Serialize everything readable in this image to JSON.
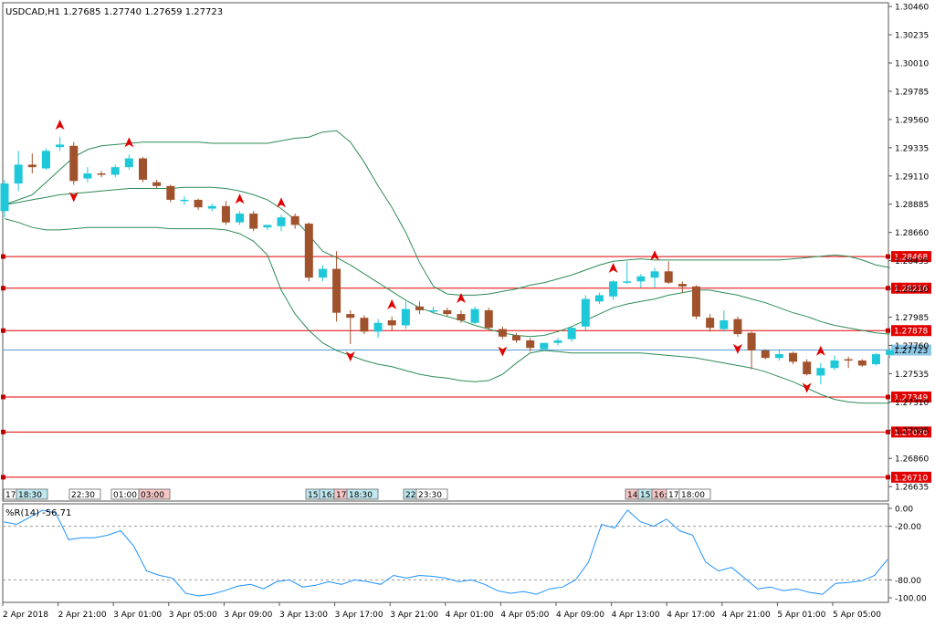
{
  "chart_data": [
    {
      "type": "candlestick",
      "title": "USDCAD,H1  1.27685 1.27740 1.27659 1.27723",
      "symbol": "USDCAD",
      "timeframe": "H1",
      "ohlc_header": {
        "open": 1.27685,
        "high": 1.2774,
        "low": 1.27659,
        "close": 1.27723
      },
      "y_ticks": [
        "1.30460",
        "1.30235",
        "1.30010",
        "1.29785",
        "1.29560",
        "1.29335",
        "1.29110",
        "1.28885",
        "1.28660",
        "1.28435",
        "1.28210",
        "1.27985",
        "1.27760",
        "1.27535",
        "1.27310",
        "1.27085",
        "1.26860",
        "1.26635"
      ],
      "ylim": [
        1.2652,
        1.3049
      ],
      "current_price": "1.27723",
      "horizontal_levels": [
        {
          "label": "1.28468",
          "value": 1.28468
        },
        {
          "label": "1.28216",
          "value": 1.28216
        },
        {
          "label": "1.27878",
          "value": 1.27878
        },
        {
          "label": "1.27349",
          "value": 1.27349
        },
        {
          "label": "1.27070",
          "value": 1.2707
        },
        {
          "label": "1.26710",
          "value": 1.2671
        }
      ],
      "session_labels": [
        {
          "text": "17:",
          "style": "plain"
        },
        {
          "text": "18:30",
          "style": "cyan"
        },
        {
          "text": "22:30",
          "style": "plain"
        },
        {
          "text": "01:00",
          "style": "plain"
        },
        {
          "text": "03:00",
          "style": "pink"
        },
        {
          "text": "15:",
          "style": "cyan"
        },
        {
          "text": "16:",
          "style": "cyan"
        },
        {
          "text": "17:",
          "style": "pink"
        },
        {
          "text": "18:30",
          "style": "cyan"
        },
        {
          "text": "22:",
          "style": "cyan"
        },
        {
          "text": "23:30",
          "style": "plain"
        },
        {
          "text": "14:",
          "style": "pink"
        },
        {
          "text": "15:",
          "style": "cyan"
        },
        {
          "text": "16:",
          "style": "pink"
        },
        {
          "text": "17:",
          "style": "plain"
        },
        {
          "text": "18:00",
          "style": "plain"
        }
      ],
      "candles": [
        {
          "o": 1.2883,
          "h": 1.2908,
          "l": 1.2878,
          "c": 1.2905
        },
        {
          "o": 1.2905,
          "h": 1.2931,
          "l": 1.2899,
          "c": 1.292
        },
        {
          "o": 1.292,
          "h": 1.2929,
          "l": 1.2913,
          "c": 1.2918
        },
        {
          "o": 1.2917,
          "h": 1.2933,
          "l": 1.2916,
          "c": 1.2931
        },
        {
          "o": 1.2934,
          "h": 1.2942,
          "l": 1.2931,
          "c": 1.2936
        },
        {
          "o": 1.2935,
          "h": 1.2938,
          "l": 1.2904,
          "c": 1.2907
        },
        {
          "o": 1.2909,
          "h": 1.2918,
          "l": 1.2906,
          "c": 1.2913
        },
        {
          "o": 1.2913,
          "h": 1.2915,
          "l": 1.291,
          "c": 1.2912
        },
        {
          "o": 1.2912,
          "h": 1.292,
          "l": 1.291,
          "c": 1.2918
        },
        {
          "o": 1.2918,
          "h": 1.2928,
          "l": 1.2916,
          "c": 1.2925
        },
        {
          "o": 1.2925,
          "h": 1.2926,
          "l": 1.2906,
          "c": 1.2908
        },
        {
          "o": 1.2906,
          "h": 1.2908,
          "l": 1.2901,
          "c": 1.2903
        },
        {
          "o": 1.2903,
          "h": 1.2904,
          "l": 1.289,
          "c": 1.2892
        },
        {
          "o": 1.2892,
          "h": 1.2895,
          "l": 1.2888,
          "c": 1.2892
        },
        {
          "o": 1.2892,
          "h": 1.2893,
          "l": 1.2884,
          "c": 1.2886
        },
        {
          "o": 1.2885,
          "h": 1.2889,
          "l": 1.2883,
          "c": 1.2887
        },
        {
          "o": 1.2887,
          "h": 1.2891,
          "l": 1.2872,
          "c": 1.2874
        },
        {
          "o": 1.2874,
          "h": 1.2883,
          "l": 1.2872,
          "c": 1.2881
        },
        {
          "o": 1.2881,
          "h": 1.2883,
          "l": 1.2867,
          "c": 1.2869
        },
        {
          "o": 1.287,
          "h": 1.2872,
          "l": 1.2868,
          "c": 1.2872
        },
        {
          "o": 1.2871,
          "h": 1.288,
          "l": 1.2867,
          "c": 1.2878
        },
        {
          "o": 1.2879,
          "h": 1.2881,
          "l": 1.2869,
          "c": 1.2872
        },
        {
          "o": 1.2873,
          "h": 1.2874,
          "l": 1.2827,
          "c": 1.283
        },
        {
          "o": 1.283,
          "h": 1.284,
          "l": 1.2827,
          "c": 1.2837
        },
        {
          "o": 1.2837,
          "h": 1.2851,
          "l": 1.2795,
          "c": 1.2802
        },
        {
          "o": 1.2801,
          "h": 1.2804,
          "l": 1.2777,
          "c": 1.2798
        },
        {
          "o": 1.2798,
          "h": 1.28,
          "l": 1.2785,
          "c": 1.2787
        },
        {
          "o": 1.2787,
          "h": 1.2797,
          "l": 1.2782,
          "c": 1.2794
        },
        {
          "o": 1.2796,
          "h": 1.2799,
          "l": 1.2788,
          "c": 1.2792
        },
        {
          "o": 1.2792,
          "h": 1.2811,
          "l": 1.2789,
          "c": 1.2805
        },
        {
          "o": 1.2807,
          "h": 1.2811,
          "l": 1.2801,
          "c": 1.2804
        },
        {
          "o": 1.2804,
          "h": 1.2807,
          "l": 1.2801,
          "c": 1.2804
        },
        {
          "o": 1.2804,
          "h": 1.2806,
          "l": 1.2799,
          "c": 1.2801
        },
        {
          "o": 1.2801,
          "h": 1.2804,
          "l": 1.2794,
          "c": 1.2796
        },
        {
          "o": 1.2794,
          "h": 1.2807,
          "l": 1.2793,
          "c": 1.2805
        },
        {
          "o": 1.2804,
          "h": 1.2806,
          "l": 1.2789,
          "c": 1.279
        },
        {
          "o": 1.2789,
          "h": 1.2791,
          "l": 1.2781,
          "c": 1.2783
        },
        {
          "o": 1.2784,
          "h": 1.2786,
          "l": 1.2778,
          "c": 1.278
        },
        {
          "o": 1.278,
          "h": 1.2782,
          "l": 1.2771,
          "c": 1.2774
        },
        {
          "o": 1.2773,
          "h": 1.2778,
          "l": 1.2772,
          "c": 1.2778
        },
        {
          "o": 1.2778,
          "h": 1.2782,
          "l": 1.2776,
          "c": 1.278
        },
        {
          "o": 1.2781,
          "h": 1.2791,
          "l": 1.2779,
          "c": 1.279
        },
        {
          "o": 1.2791,
          "h": 1.2816,
          "l": 1.2788,
          "c": 1.2813
        },
        {
          "o": 1.2811,
          "h": 1.2818,
          "l": 1.2809,
          "c": 1.2816
        },
        {
          "o": 1.2815,
          "h": 1.2828,
          "l": 1.2812,
          "c": 1.2827
        },
        {
          "o": 1.2827,
          "h": 1.2843,
          "l": 1.2825,
          "c": 1.2827
        },
        {
          "o": 1.2827,
          "h": 1.2833,
          "l": 1.2822,
          "c": 1.2831
        },
        {
          "o": 1.283,
          "h": 1.2838,
          "l": 1.2822,
          "c": 1.2835
        },
        {
          "o": 1.2835,
          "h": 1.2843,
          "l": 1.2825,
          "c": 1.2826
        },
        {
          "o": 1.2825,
          "h": 1.2827,
          "l": 1.2818,
          "c": 1.2823
        },
        {
          "o": 1.2823,
          "h": 1.2824,
          "l": 1.2797,
          "c": 1.2799
        },
        {
          "o": 1.2798,
          "h": 1.2801,
          "l": 1.2787,
          "c": 1.279
        },
        {
          "o": 1.2789,
          "h": 1.2804,
          "l": 1.2787,
          "c": 1.2796
        },
        {
          "o": 1.2797,
          "h": 1.2799,
          "l": 1.2783,
          "c": 1.2785
        },
        {
          "o": 1.2786,
          "h": 1.2787,
          "l": 1.2757,
          "c": 1.2772
        },
        {
          "o": 1.2772,
          "h": 1.2773,
          "l": 1.2765,
          "c": 1.2766
        },
        {
          "o": 1.2766,
          "h": 1.2772,
          "l": 1.2764,
          "c": 1.2769
        },
        {
          "o": 1.277,
          "h": 1.2771,
          "l": 1.2761,
          "c": 1.2763
        },
        {
          "o": 1.2763,
          "h": 1.2765,
          "l": 1.2752,
          "c": 1.2753
        },
        {
          "o": 1.2752,
          "h": 1.2762,
          "l": 1.2745,
          "c": 1.2758
        },
        {
          "o": 1.2758,
          "h": 1.2768,
          "l": 1.2756,
          "c": 1.2764
        },
        {
          "o": 1.2765,
          "h": 1.2767,
          "l": 1.2758,
          "c": 1.2764
        },
        {
          "o": 1.2764,
          "h": 1.2765,
          "l": 1.2759,
          "c": 1.276
        },
        {
          "o": 1.2761,
          "h": 1.277,
          "l": 1.276,
          "c": 1.2769
        },
        {
          "o": 1.27685,
          "h": 1.2774,
          "l": 1.27659,
          "c": 1.27723
        }
      ],
      "arrows": [
        {
          "i": 4,
          "dir": "up"
        },
        {
          "i": 5,
          "dir": "down"
        },
        {
          "i": 9,
          "dir": "up"
        },
        {
          "i": 17,
          "dir": "up"
        },
        {
          "i": 20,
          "dir": "up"
        },
        {
          "i": 25,
          "dir": "down"
        },
        {
          "i": 28,
          "dir": "up"
        },
        {
          "i": 33,
          "dir": "up"
        },
        {
          "i": 36,
          "dir": "down"
        },
        {
          "i": 44,
          "dir": "up"
        },
        {
          "i": 47,
          "dir": "up"
        },
        {
          "i": 53,
          "dir": "down"
        },
        {
          "i": 58,
          "dir": "down"
        },
        {
          "i": 59,
          "dir": "up"
        }
      ],
      "bollinger": {
        "upper": [
          1.2888,
          1.2892,
          1.2896,
          1.2906,
          1.2916,
          1.2926,
          1.2932,
          1.2935,
          1.2936,
          1.2937,
          1.2938,
          1.2938,
          1.2938,
          1.2938,
          1.2938,
          1.2937,
          1.2937,
          1.2937,
          1.2937,
          1.2937,
          1.2939,
          1.2941,
          1.2942,
          1.2946,
          1.2947,
          1.2938,
          1.2922,
          1.2903,
          1.2886,
          1.2866,
          1.2842,
          1.2823,
          1.2817,
          1.2816,
          1.2816,
          1.2817,
          1.2819,
          1.2821,
          1.2824,
          1.2826,
          1.2829,
          1.2832,
          1.2836,
          1.284,
          1.2843,
          1.2844,
          1.2845,
          1.2844,
          1.2844,
          1.2844,
          1.2844,
          1.2844,
          1.2844,
          1.2844,
          1.2844,
          1.2844,
          1.2844,
          1.2845,
          1.2846,
          1.2847,
          1.2848,
          1.2847,
          1.2844,
          1.284,
          1.2838
        ],
        "middle": [
          1.2888,
          1.289,
          1.2892,
          1.2894,
          1.2896,
          1.2897,
          1.2898,
          1.2899,
          1.29,
          1.2901,
          1.2901,
          1.2901,
          1.2901,
          1.2902,
          1.2902,
          1.2902,
          1.2901,
          1.2899,
          1.2896,
          1.2892,
          1.2885,
          1.2876,
          1.2864,
          1.2851,
          1.2846,
          1.284,
          1.2833,
          1.2826,
          1.2819,
          1.2812,
          1.2806,
          1.2802,
          1.2799,
          1.2796,
          1.2792,
          1.2789,
          1.2786,
          1.2784,
          1.2783,
          1.2784,
          1.2787,
          1.2791,
          1.2796,
          1.2801,
          1.2806,
          1.2809,
          1.2811,
          1.2813,
          1.2816,
          1.2818,
          1.282,
          1.282,
          1.2818,
          1.2816,
          1.2813,
          1.281,
          1.2806,
          1.2802,
          1.2799,
          1.2795,
          1.2792,
          1.279,
          1.2788,
          1.2786,
          1.2785
        ],
        "lower": [
          1.2877,
          1.2874,
          1.287,
          1.2868,
          1.2868,
          1.2869,
          1.287,
          1.287,
          1.287,
          1.287,
          1.287,
          1.287,
          1.2869,
          1.2869,
          1.2869,
          1.2869,
          1.2868,
          1.2865,
          1.2859,
          1.2848,
          1.282,
          1.2801,
          1.2788,
          1.2778,
          1.2772,
          1.2768,
          1.2764,
          1.2761,
          1.2759,
          1.2756,
          1.2753,
          1.2751,
          1.275,
          1.2748,
          1.2747,
          1.2748,
          1.2753,
          1.2762,
          1.277,
          1.2772,
          1.2771,
          1.277,
          1.277,
          1.277,
          1.277,
          1.277,
          1.277,
          1.2769,
          1.2768,
          1.2767,
          1.2766,
          1.2764,
          1.2762,
          1.276,
          1.2758,
          1.2755,
          1.2751,
          1.2747,
          1.2742,
          1.2737,
          1.2733,
          1.2731,
          1.273,
          1.273,
          1.273
        ]
      }
    },
    {
      "type": "line",
      "title": "%R(14) -56.71",
      "indicator": "%R(14)",
      "last_value": "-56.71",
      "ylim": [
        -100,
        0
      ],
      "y_ticks": [
        "0.00",
        "-20.00",
        "-80.00",
        "-100.00"
      ],
      "levels": [
        -20,
        -80
      ],
      "x_labels": [
        "2 Apr 2018",
        "2 Apr 21:00",
        "3 Apr 01:00",
        "3 Apr 05:00",
        "3 Apr 09:00",
        "3 Apr 13:00",
        "3 Apr 17:00",
        "3 Apr 21:00",
        "4 Apr 01:00",
        "4 Apr 05:00",
        "4 Apr 09:00",
        "4 Apr 13:00",
        "4 Apr 17:00",
        "4 Apr 21:00",
        "5 Apr 01:00",
        "5 Apr 05:00"
      ],
      "values": [
        -15,
        -18,
        -10,
        -2,
        -5,
        -35,
        -33,
        -33,
        -30,
        -25,
        -42,
        -70,
        -75,
        -78,
        -95,
        -98,
        -96,
        -92,
        -87,
        -85,
        -90,
        -82,
        -80,
        -88,
        -86,
        -82,
        -85,
        -80,
        -82,
        -85,
        -75,
        -78,
        -75,
        -76,
        -78,
        -82,
        -80,
        -85,
        -92,
        -95,
        -93,
        -96,
        -90,
        -88,
        -80,
        -60,
        -18,
        -22,
        -2,
        -15,
        -20,
        -12,
        -25,
        -30,
        -60,
        -70,
        -66,
        -78,
        -90,
        -88,
        -92,
        -90,
        -94,
        -96,
        -84,
        -83,
        -81,
        -75,
        -57
      ]
    }
  ]
}
